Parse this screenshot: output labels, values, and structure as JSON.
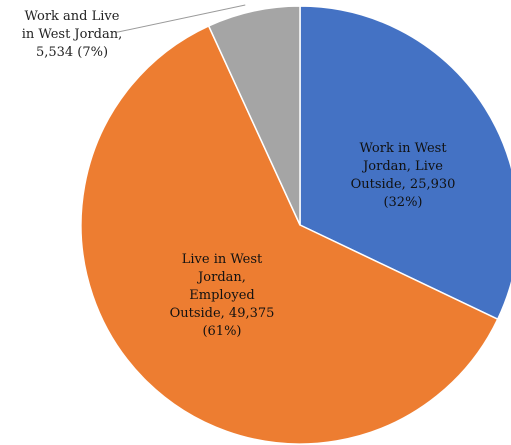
{
  "chart_data": {
    "type": "pie",
    "title": "",
    "legend": false,
    "slices": [
      {
        "category": "Work in West Jordan, Live Outside",
        "value": 25930,
        "percent": 32,
        "color": "#4472C4",
        "label_lines": [
          "Work in West",
          "Jordan, Live",
          "Outside,  25,930",
          "(32%)"
        ],
        "label_placement": "inside"
      },
      {
        "category": "Live in West Jordan, Employed Outside",
        "value": 49375,
        "percent": 61,
        "color": "#ED7D31",
        "label_lines": [
          "Live in West",
          "Jordan,",
          "Employed",
          "Outside,  49,375",
          "(61%)"
        ],
        "label_placement": "inside"
      },
      {
        "category": "Work and Live in West Jordan",
        "value": 5534,
        "percent": 7,
        "color": "#A5A5A5",
        "label_lines": [
          "Work and Live",
          "in West Jordan,",
          "5,534  (7%)"
        ],
        "label_placement": "outside-top-left"
      }
    ]
  }
}
